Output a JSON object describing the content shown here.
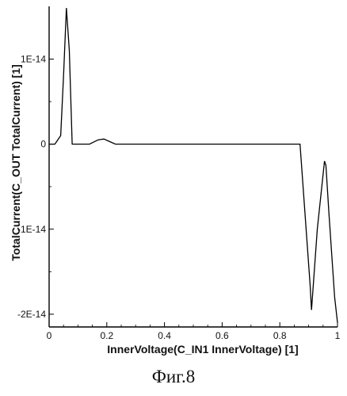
{
  "chart_data": {
    "type": "line",
    "xlabel": "InnerVoltage(C_IN1 InnerVoltage) [1]",
    "ylabel": "TotalCurrent(C_OUT TotalCurrent) [1]",
    "xlim": [
      0,
      1
    ],
    "ylim": [
      -2.15e-14,
      1.62e-14
    ],
    "x_ticks": [
      0,
      0.2,
      0.4,
      0.6,
      0.8,
      1
    ],
    "x_tick_labels": [
      "0",
      "0.2",
      "0.4",
      "0.6",
      "0.8",
      "1"
    ],
    "y_ticks": [
      1e-14,
      0,
      -1e-14,
      -2e-14
    ],
    "y_tick_labels": [
      "1E-14",
      "0",
      "-1E-14",
      "-2E-14"
    ],
    "grid": false,
    "legend": "none",
    "series": [
      {
        "x": [
          0,
          0.02,
          0.04,
          0.05,
          0.06,
          0.07,
          0.08,
          0.09,
          0.1,
          0.14,
          0.17,
          0.19,
          0.21,
          0.23,
          0.25,
          0.3,
          0.5,
          0.7,
          0.8,
          0.87,
          0.905,
          0.91,
          0.93,
          0.955,
          0.96,
          0.97,
          0.99,
          1.0
        ],
        "y": [
          0,
          0,
          1e-15,
          8e-15,
          1.6e-14,
          1.1e-14,
          0,
          0,
          0,
          0,
          5e-16,
          6e-16,
          3e-16,
          0,
          0,
          0,
          0,
          0,
          0,
          0,
          -1.65e-14,
          -1.95e-14,
          -1e-14,
          -2e-15,
          -2.5e-15,
          -8e-15,
          -1.8e-14,
          -2.1e-14
        ]
      }
    ]
  },
  "caption": "Фиг.8"
}
